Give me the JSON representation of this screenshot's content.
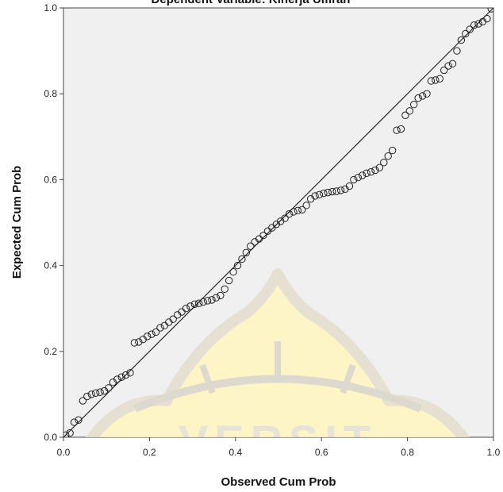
{
  "chart_data": {
    "type": "scatter",
    "title": "Dependent Variable: Kinerja Umrah",
    "xlabel": "Observed Cum Prob",
    "ylabel": "Expected Cum Prob",
    "xlim": [
      0,
      1
    ],
    "ylim": [
      0,
      1
    ],
    "xticks": [
      "0.0",
      "0.2",
      "0.4",
      "0.6",
      "0.8",
      "1.0"
    ],
    "yticks": [
      "0.0",
      "0.2",
      "0.4",
      "0.6",
      "0.8",
      "1.0"
    ],
    "grid": false,
    "reference_line": {
      "x": [
        0,
        1
      ],
      "y": [
        0,
        1
      ]
    },
    "points": [
      [
        0.005,
        0.005
      ],
      [
        0.015,
        0.01
      ],
      [
        0.025,
        0.035
      ],
      [
        0.035,
        0.04
      ],
      [
        0.045,
        0.085
      ],
      [
        0.055,
        0.095
      ],
      [
        0.065,
        0.1
      ],
      [
        0.075,
        0.103
      ],
      [
        0.085,
        0.105
      ],
      [
        0.095,
        0.108
      ],
      [
        0.105,
        0.115
      ],
      [
        0.115,
        0.128
      ],
      [
        0.125,
        0.135
      ],
      [
        0.135,
        0.14
      ],
      [
        0.145,
        0.145
      ],
      [
        0.155,
        0.15
      ],
      [
        0.165,
        0.22
      ],
      [
        0.175,
        0.222
      ],
      [
        0.185,
        0.228
      ],
      [
        0.195,
        0.235
      ],
      [
        0.205,
        0.24
      ],
      [
        0.215,
        0.245
      ],
      [
        0.225,
        0.255
      ],
      [
        0.235,
        0.26
      ],
      [
        0.245,
        0.268
      ],
      [
        0.255,
        0.275
      ],
      [
        0.265,
        0.285
      ],
      [
        0.275,
        0.292
      ],
      [
        0.285,
        0.3
      ],
      [
        0.295,
        0.305
      ],
      [
        0.305,
        0.31
      ],
      [
        0.315,
        0.312
      ],
      [
        0.325,
        0.315
      ],
      [
        0.335,
        0.318
      ],
      [
        0.345,
        0.32
      ],
      [
        0.355,
        0.325
      ],
      [
        0.365,
        0.33
      ],
      [
        0.375,
        0.345
      ],
      [
        0.385,
        0.365
      ],
      [
        0.395,
        0.385
      ],
      [
        0.405,
        0.4
      ],
      [
        0.415,
        0.415
      ],
      [
        0.425,
        0.43
      ],
      [
        0.435,
        0.445
      ],
      [
        0.445,
        0.455
      ],
      [
        0.455,
        0.462
      ],
      [
        0.465,
        0.47
      ],
      [
        0.475,
        0.48
      ],
      [
        0.485,
        0.488
      ],
      [
        0.495,
        0.496
      ],
      [
        0.505,
        0.503
      ],
      [
        0.515,
        0.51
      ],
      [
        0.525,
        0.52
      ],
      [
        0.535,
        0.525
      ],
      [
        0.545,
        0.528
      ],
      [
        0.555,
        0.53
      ],
      [
        0.565,
        0.54
      ],
      [
        0.575,
        0.555
      ],
      [
        0.585,
        0.562
      ],
      [
        0.595,
        0.565
      ],
      [
        0.605,
        0.568
      ],
      [
        0.615,
        0.57
      ],
      [
        0.625,
        0.572
      ],
      [
        0.635,
        0.573
      ],
      [
        0.645,
        0.575
      ],
      [
        0.655,
        0.578
      ],
      [
        0.665,
        0.585
      ],
      [
        0.675,
        0.6
      ],
      [
        0.685,
        0.605
      ],
      [
        0.695,
        0.61
      ],
      [
        0.705,
        0.615
      ],
      [
        0.715,
        0.618
      ],
      [
        0.725,
        0.622
      ],
      [
        0.735,
        0.628
      ],
      [
        0.745,
        0.64
      ],
      [
        0.755,
        0.655
      ],
      [
        0.765,
        0.668
      ],
      [
        0.775,
        0.715
      ],
      [
        0.785,
        0.718
      ],
      [
        0.795,
        0.75
      ],
      [
        0.805,
        0.76
      ],
      [
        0.815,
        0.775
      ],
      [
        0.825,
        0.79
      ],
      [
        0.835,
        0.795
      ],
      [
        0.845,
        0.8
      ],
      [
        0.855,
        0.83
      ],
      [
        0.865,
        0.832
      ],
      [
        0.875,
        0.835
      ],
      [
        0.885,
        0.855
      ],
      [
        0.895,
        0.865
      ],
      [
        0.905,
        0.87
      ],
      [
        0.915,
        0.9
      ],
      [
        0.925,
        0.925
      ],
      [
        0.935,
        0.94
      ],
      [
        0.945,
        0.95
      ],
      [
        0.955,
        0.96
      ],
      [
        0.965,
        0.963
      ],
      [
        0.975,
        0.968
      ],
      [
        0.985,
        0.975
      ],
      [
        0.995,
        0.998
      ]
    ]
  }
}
